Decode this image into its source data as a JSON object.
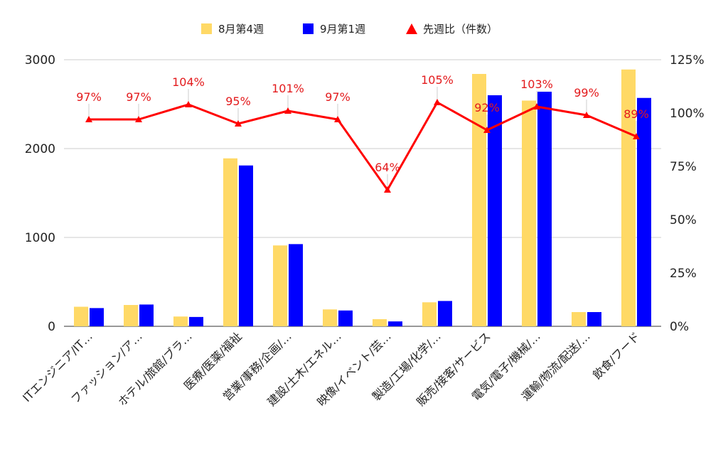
{
  "chart_data": {
    "type": "bar",
    "categories": [
      "ITエンジニア/IT…",
      "ファッション/ア…",
      "ホテル/旅館/ブラ…",
      "医療/医薬/福祉",
      "営業/事務/企画/…",
      "建設/土木/エネル…",
      "映像/イベント/芸…",
      "製造/工場/化学/…",
      "販売/接客/サービス",
      "電気/電子/機械/…",
      "運輸/物流/配送/…",
      "飲食/フード"
    ],
    "series": [
      {
        "name": "8月第4週",
        "type": "bar",
        "color": "#ffd966",
        "values": [
          220,
          240,
          110,
          1890,
          910,
          190,
          80,
          270,
          2840,
          2540,
          160,
          2890
        ]
      },
      {
        "name": "9月第1週",
        "type": "bar",
        "color": "#0000ff",
        "values": [
          205,
          245,
          105,
          1810,
          925,
          178,
          55,
          285,
          2600,
          2640,
          160,
          2570
        ]
      },
      {
        "name": "先週比（件数）",
        "type": "line",
        "axis": "right",
        "color": "#ff0000",
        "values": [
          97,
          97,
          104,
          95,
          101,
          97,
          64,
          105,
          92,
          103,
          99,
          89
        ],
        "labels": [
          "97%",
          "97%",
          "104%",
          "95%",
          "101%",
          "97%",
          "64%",
          "105%",
          "92%",
          "103%",
          "99%",
          "89%"
        ]
      }
    ],
    "y_left": {
      "ticks": [
        "0",
        "1000",
        "2000",
        "3000"
      ],
      "ylim": [
        0,
        3000
      ]
    },
    "y_right": {
      "ticks": [
        "0%",
        "25%",
        "50%",
        "75%",
        "100%",
        "125%"
      ],
      "ylim": [
        0,
        125
      ]
    },
    "legend_position": "top",
    "grid": true
  }
}
